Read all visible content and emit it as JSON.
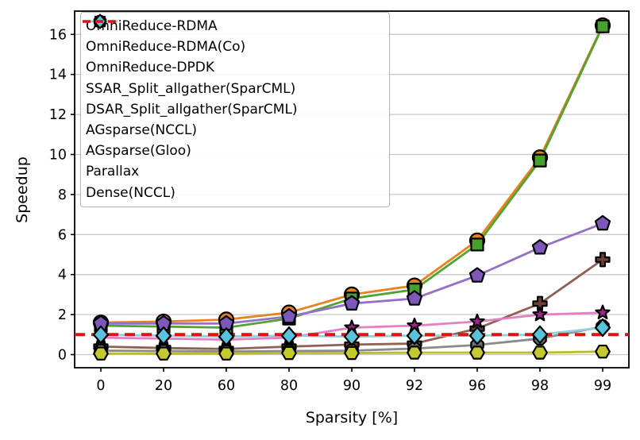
{
  "figure": {
    "xlabel": "Sparsity [%]",
    "ylabel": "Speedup"
  },
  "chart_data": {
    "type": "line",
    "title": "",
    "xlabel": "Sparsity [%]",
    "ylabel": "Speedup",
    "categories": [
      0,
      20,
      60,
      80,
      90,
      92,
      96,
      98,
      99
    ],
    "yticks": [
      0,
      2,
      4,
      6,
      8,
      10,
      12,
      14,
      16
    ],
    "ylim": [
      -0.8,
      17.2
    ],
    "grid": "horizontal",
    "grid_color": "#c8c8c8",
    "legend_position": "upper-left",
    "series": [
      {
        "name": "OmniReduce-RDMA",
        "marker": "circle",
        "color": "#e8811e",
        "marker_fill": "#e87f1e",
        "values": [
          1.6,
          1.65,
          1.75,
          2.1,
          3.0,
          3.45,
          5.7,
          9.85,
          16.45
        ]
      },
      {
        "name": "OmniReduce-RDMA(Co)",
        "marker": "square",
        "color": "#52a332",
        "marker_fill": "#47a02c",
        "values": [
          1.45,
          1.4,
          1.35,
          1.8,
          2.8,
          3.25,
          5.5,
          9.7,
          16.4
        ]
      },
      {
        "name": "OmniReduce-DPDK",
        "marker": "pentagon",
        "color": "#9571c5",
        "marker_fill": "#7e57ba",
        "values": [
          1.55,
          1.55,
          1.55,
          1.9,
          2.55,
          2.8,
          3.95,
          5.35,
          6.55
        ]
      },
      {
        "name": "SSAR_Split_allgather(SparCML)",
        "marker": "plus",
        "color": "#916055",
        "marker_fill": "#6b4136",
        "values": [
          0.4,
          0.33,
          0.28,
          0.4,
          0.5,
          0.55,
          1.3,
          2.55,
          4.75
        ]
      },
      {
        "name": "DSAR_Split_allgather(SparCML)",
        "marker": "star",
        "color": "#e47fc5",
        "marker_fill": "#a0268e",
        "values": [
          0.85,
          0.8,
          0.75,
          0.85,
          1.35,
          1.45,
          1.65,
          2.0,
          2.1
        ]
      },
      {
        "name": "AGsparse(NCCL)",
        "marker": "octagon",
        "color": "#8a8a8a",
        "marker_fill": "#6f6f6f",
        "values": [
          0.2,
          0.18,
          0.16,
          0.18,
          0.2,
          0.3,
          0.48,
          0.8,
          1.4
        ]
      },
      {
        "name": "AGsparse(Gloo)",
        "marker": "hexagon",
        "color": "#bcbd22",
        "marker_fill": "#c5c930",
        "values": [
          0.05,
          0.05,
          0.05,
          0.08,
          0.08,
          0.1,
          0.1,
          0.1,
          0.15
        ]
      },
      {
        "name": "Parallax",
        "marker": "diamond",
        "color": "#8cd1dd",
        "marker_fill": "#58c3dc",
        "values": [
          1.0,
          0.95,
          0.9,
          0.95,
          0.9,
          0.95,
          0.95,
          1.0,
          1.35
        ]
      }
    ],
    "reference_line": {
      "name": "Dense(NCCL)",
      "value": 1.0,
      "color": "#dd1414",
      "style": "dashed"
    }
  }
}
